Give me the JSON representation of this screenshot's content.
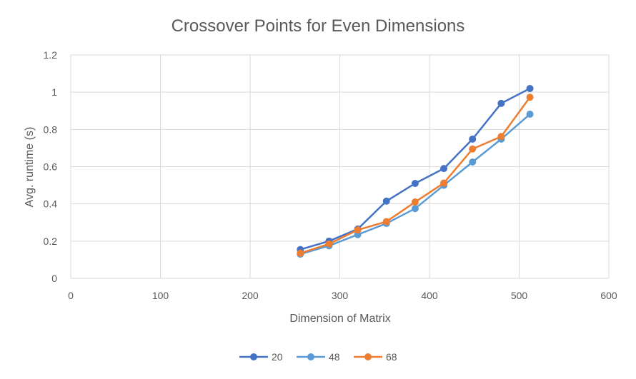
{
  "chart_data": {
    "type": "line",
    "title": "Crossover Points for Even Dimensions",
    "xlabel": "Dimension of Matrix",
    "ylabel": "Avg. runtime (s)",
    "xlim": [
      0,
      600
    ],
    "ylim": [
      0,
      1.2
    ],
    "x_ticks": [
      "0",
      "100",
      "200",
      "300",
      "400",
      "500",
      "600"
    ],
    "y_ticks": [
      "0",
      "0.2",
      "0.4",
      "0.6",
      "0.8",
      "1",
      "1.2"
    ],
    "grid": true,
    "legend_position": "bottom",
    "x": [
      256,
      288,
      320,
      352,
      384,
      416,
      448,
      480,
      512
    ],
    "series": [
      {
        "name": "20",
        "color": "#4472C4",
        "values": [
          0.155,
          0.2,
          0.265,
          0.415,
          0.51,
          0.59,
          0.748,
          0.94,
          1.02
        ]
      },
      {
        "name": "48",
        "color": "#5B9BD5",
        "values": [
          0.13,
          0.175,
          0.235,
          0.295,
          0.375,
          0.5,
          0.625,
          0.748,
          0.882
        ]
      },
      {
        "name": "68",
        "color": "#ED7D31",
        "values": [
          0.135,
          0.185,
          0.26,
          0.305,
          0.41,
          0.512,
          0.695,
          0.762,
          0.973
        ]
      }
    ]
  }
}
